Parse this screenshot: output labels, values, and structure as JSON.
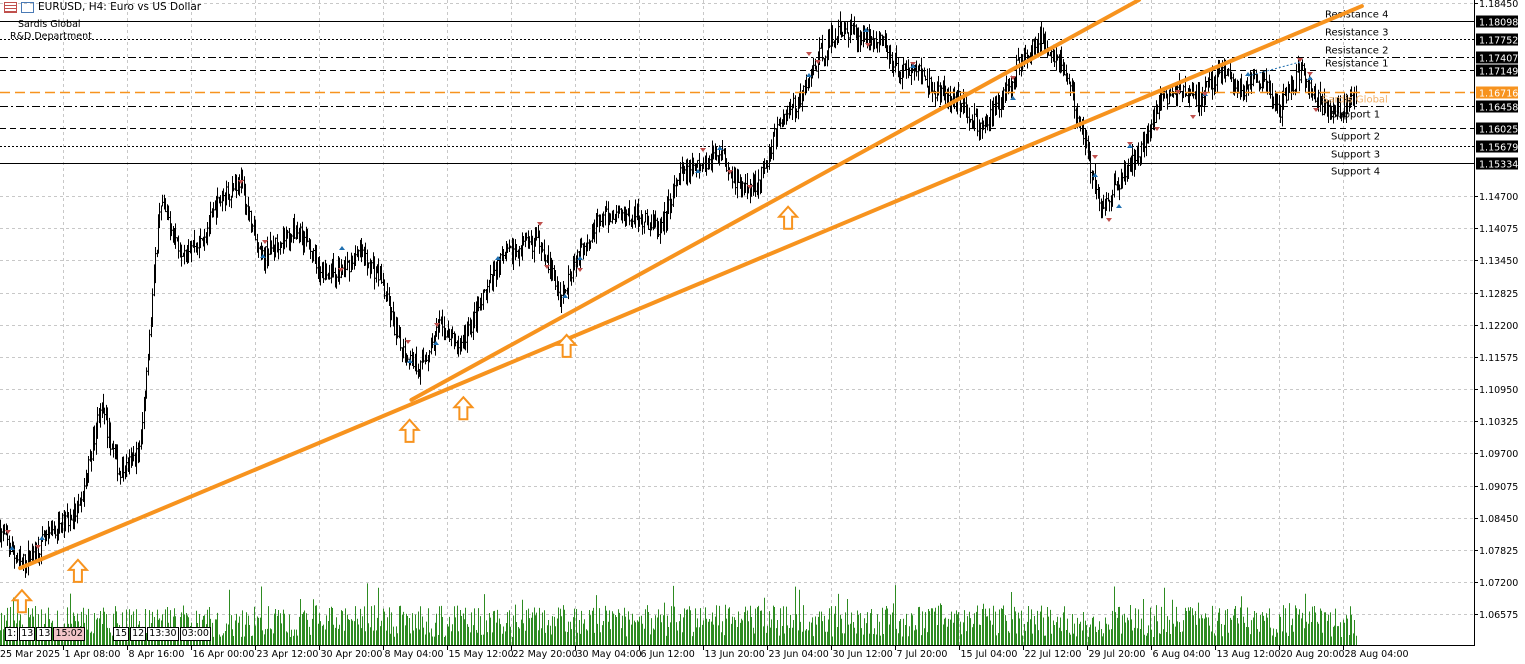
{
  "header": {
    "title": "EURUSD, H4:  Euro vs US Dollar",
    "brand_line1": "Sardis Global",
    "brand_line2": "R&D Department"
  },
  "time_markers_left": [
    "1:",
    "13",
    "13",
    "15:02"
  ],
  "time_markers_right": [
    "15",
    "12",
    "13:30",
    "03:00"
  ],
  "colors": {
    "trendline": "#f7931e",
    "current_price": "#f7931e",
    "volume": "#2e8b22",
    "bars": "#000000",
    "buy_marker": "#1f6fb0",
    "sell_marker": "#c0504d",
    "grid": "#c8c8c8"
  },
  "chart_data": {
    "type": "ohlc",
    "symbol": "EURUSD",
    "timeframe": "H4",
    "ylim": [
      1.062,
      1.1851
    ],
    "grid": true,
    "x_ticks": [
      "25 Mar 2025",
      "1 Apr 08:00",
      "8 Apr 16:00",
      "16 Apr 00:00",
      "23 Apr 12:00",
      "30 Apr 20:00",
      "8 May 04:00",
      "15 May 12:00",
      "22 May 20:00",
      "30 May 04:00",
      "6 Jun 12:00",
      "13 Jun 20:00",
      "23 Jun 04:00",
      "30 Jun 12:00",
      "7 Jul 20:00",
      "15 Jul 04:00",
      "22 Jul 12:00",
      "29 Jul 20:00",
      "6 Aug 04:00",
      "13 Aug 12:00",
      "20 Aug 20:00",
      "28 Aug 04:00"
    ],
    "y_ticks": [
      "1.18450",
      "1.14700",
      "1.14075",
      "1.13450",
      "1.12825",
      "1.12200",
      "1.11575",
      "1.10950",
      "1.10325",
      "1.09700",
      "1.09075",
      "1.08450",
      "1.07825",
      "1.07200",
      "1.06575"
    ],
    "price_path": [
      1.0821,
      1.0753,
      1.0792,
      1.0831,
      1.086,
      1.1064,
      1.0928,
      1.0977,
      1.1462,
      1.1369,
      1.1381,
      1.1462,
      1.1501,
      1.1346,
      1.1385,
      1.1404,
      1.1326,
      1.1322,
      1.136,
      1.1312,
      1.1176,
      1.1137,
      1.1215,
      1.1176,
      1.1254,
      1.1346,
      1.137,
      1.1385,
      1.1273,
      1.137,
      1.1423,
      1.1437,
      1.1429,
      1.1404,
      1.1511,
      1.1526,
      1.1559,
      1.1482,
      1.1501,
      1.1618,
      1.1657,
      1.1744,
      1.1793,
      1.1783,
      1.1773,
      1.1715,
      1.1715,
      1.1666,
      1.1657,
      1.1598,
      1.1647,
      1.1734,
      1.1773,
      1.1734,
      1.1618,
      1.1443,
      1.1501,
      1.1559,
      1.1657,
      1.1676,
      1.1657,
      1.1715,
      1.1676,
      1.1695,
      1.1637,
      1.1715,
      1.1647,
      1.1637,
      1.1666
    ],
    "levels": [
      {
        "name": "Resistance 4",
        "price": "1.18098",
        "style": "solid"
      },
      {
        "name": "Resistance 3",
        "price": "1.17752",
        "style": "dotted"
      },
      {
        "name": "Resistance 2",
        "price": "1.17407",
        "style": "dashdot"
      },
      {
        "name": "Resistance 1",
        "price": "1.17149",
        "style": "dashed"
      },
      {
        "name": "Sardis Global",
        "price": "1.16716",
        "style": "current"
      },
      {
        "name": "Support 1",
        "price": "1.16458",
        "style": "dashdot"
      },
      {
        "name": "Support 2",
        "price": "1.16025",
        "style": "dashed"
      },
      {
        "name": "Support 3",
        "price": "1.15679",
        "style": "dotted"
      },
      {
        "name": "Support 4",
        "price": "1.15334",
        "style": "solid"
      }
    ],
    "trendlines": [
      {
        "start": [
          "2025-03-27T10:00",
          1.0747
        ],
        "end": [
          "2025-08-28T04:00",
          1.1839
        ]
      },
      {
        "start": [
          "2025-05-11T06:00",
          1.1074
        ],
        "end": [
          "2025-08-02T15:00",
          1.1851
        ]
      }
    ],
    "up_arrows": [
      [
        "2025-03-27T15:00",
        1.0708
      ],
      [
        "2025-04-03T01:00",
        1.0767
      ],
      [
        "2025-05-11T01:00",
        1.1039
      ],
      [
        "2025-05-17T05:00",
        1.1083
      ],
      [
        "2025-05-29T01:00",
        1.1204
      ],
      [
        "2025-06-23T10:00",
        1.1453
      ]
    ]
  }
}
